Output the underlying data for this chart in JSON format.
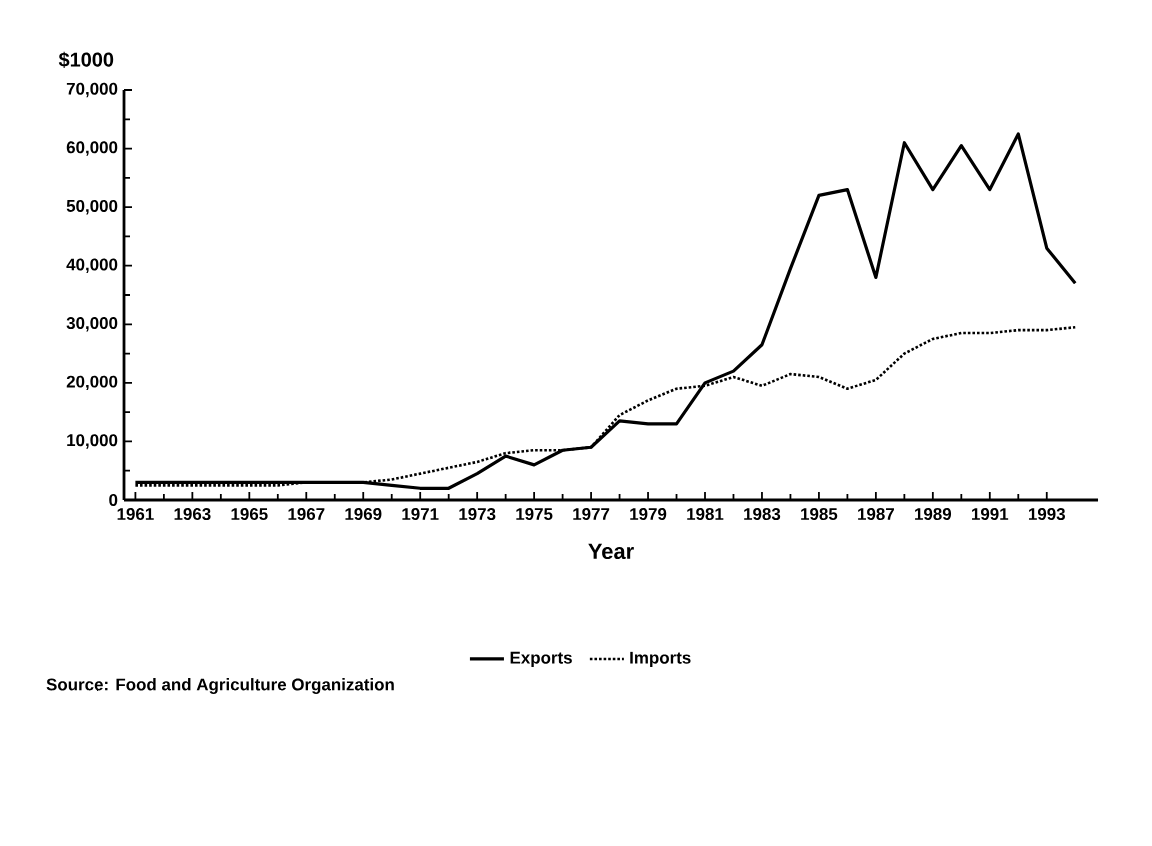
{
  "chart_data": {
    "type": "line",
    "ylabel": "$1000",
    "xlabel": "Year",
    "x": [
      1961,
      1962,
      1963,
      1964,
      1965,
      1966,
      1967,
      1968,
      1969,
      1970,
      1971,
      1972,
      1973,
      1974,
      1975,
      1976,
      1977,
      1978,
      1979,
      1980,
      1981,
      1982,
      1983,
      1984,
      1985,
      1986,
      1987,
      1988,
      1989,
      1990,
      1991,
      1992,
      1993,
      1994
    ],
    "series": [
      {
        "name": "Exports",
        "color": "#000000",
        "line_style": "solid",
        "values": [
          3000,
          3000,
          3000,
          3000,
          3000,
          3000,
          3000,
          3000,
          3000,
          2500,
          2000,
          2000,
          4500,
          7500,
          6000,
          8500,
          9000,
          13500,
          13000,
          13000,
          20000,
          22000,
          26500,
          39500,
          52000,
          53000,
          38000,
          61000,
          53000,
          60500,
          53000,
          62500,
          43000,
          37000
        ]
      },
      {
        "name": "Imports",
        "color": "#000000",
        "line_style": "dotted",
        "values": [
          2500,
          2500,
          2500,
          2500,
          2500,
          2500,
          3000,
          3000,
          3000,
          3500,
          4500,
          5500,
          6500,
          8000,
          8500,
          8500,
          9000,
          14500,
          17000,
          19000,
          19500,
          21000,
          19500,
          21500,
          21000,
          19000,
          20500,
          25000,
          27500,
          28500,
          28500,
          29000,
          29000,
          29500
        ]
      }
    ],
    "xlim": [
      1960.6,
      1994.8
    ],
    "xticks": [
      1961,
      1963,
      1965,
      1967,
      1969,
      1971,
      1973,
      1975,
      1977,
      1979,
      1981,
      1983,
      1985,
      1987,
      1989,
      1991,
      1993
    ],
    "ylim": [
      0,
      70000
    ],
    "yticks": [
      0,
      {
        "value": 10000,
        "label": "10,000"
      },
      {
        "value": 20000,
        "label": "20,000"
      },
      {
        "value": 30000,
        "label": "30,000"
      },
      {
        "value": 40000,
        "label": "40,000"
      },
      {
        "value": 50000,
        "label": "50,000"
      },
      {
        "value": 60000,
        "label": "60,000"
      },
      {
        "value": 70000,
        "label": "70,000"
      }
    ],
    "legend": "bottom",
    "grid": false,
    "annotations": [
      "Source: Food and Agriculture Organization"
    ]
  }
}
